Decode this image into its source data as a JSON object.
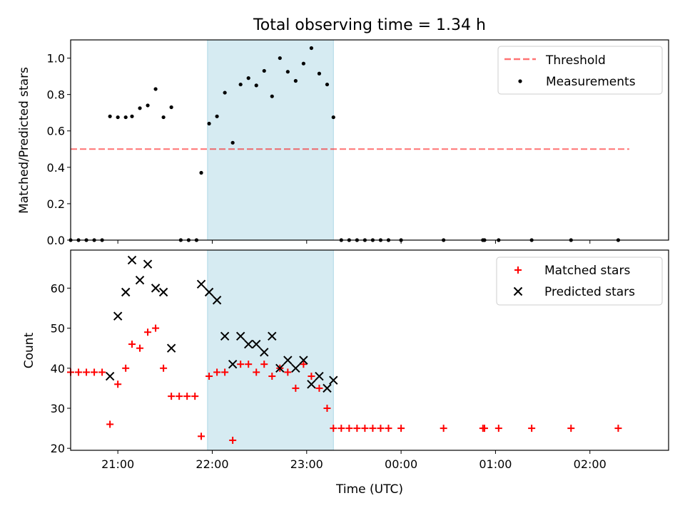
{
  "colors": {
    "shade": "#add8e6",
    "threshold": "#ff0000",
    "measurements": "#000000",
    "matched": "#ff0000",
    "predicted": "#000000"
  },
  "chart_data": [
    {
      "type": "scatter",
      "title": "Total observing time = 1.34 h",
      "ylabel": "Matched/Predicted stars",
      "xlabel": "",
      "ylim": [
        0,
        1.1
      ],
      "xlim": [
        "20:30",
        "02:50"
      ],
      "yticks": [
        0.0,
        0.2,
        0.4,
        0.6,
        0.8,
        1.0
      ],
      "ytick_labels": [
        "0.0",
        "0.2",
        "0.4",
        "0.6",
        "0.8",
        "1.0"
      ],
      "shaded_interval": [
        "21:57",
        "23:17"
      ],
      "legend": {
        "placement": "top-right",
        "entries": [
          "Threshold",
          "Measurements"
        ]
      },
      "threshold": {
        "name": "Threshold",
        "value": 0.5,
        "x_range": [
          "20:30",
          "02:25"
        ],
        "style": "dashed"
      },
      "series": [
        {
          "name": "Measurements",
          "points": [
            [
              "20:30",
              0.0
            ],
            [
              "20:35",
              0.0
            ],
            [
              "20:40",
              0.0
            ],
            [
              "20:45",
              0.0
            ],
            [
              "20:50",
              0.0
            ],
            [
              "20:55",
              0.68
            ],
            [
              "21:00",
              0.675
            ],
            [
              "21:05",
              0.675
            ],
            [
              "21:09",
              0.68
            ],
            [
              "21:14",
              0.725
            ],
            [
              "21:19",
              0.74
            ],
            [
              "21:24",
              0.83
            ],
            [
              "21:29",
              0.675
            ],
            [
              "21:34",
              0.73
            ],
            [
              "21:40",
              0.0
            ],
            [
              "21:45",
              0.0
            ],
            [
              "21:50",
              0.0
            ],
            [
              "21:53",
              0.37
            ],
            [
              "21:58",
              0.64
            ],
            [
              "22:03",
              0.68
            ],
            [
              "22:08",
              0.81
            ],
            [
              "22:13",
              0.535
            ],
            [
              "22:18",
              0.855
            ],
            [
              "22:23",
              0.89
            ],
            [
              "22:28",
              0.85
            ],
            [
              "22:33",
              0.93
            ],
            [
              "22:38",
              0.79
            ],
            [
              "22:43",
              1.0
            ],
            [
              "22:48",
              0.925
            ],
            [
              "22:53",
              0.875
            ],
            [
              "22:58",
              0.97
            ],
            [
              "23:03",
              1.055
            ],
            [
              "23:08",
              0.915
            ],
            [
              "23:13",
              0.855
            ],
            [
              "23:17",
              0.675
            ],
            [
              "23:22",
              0.0
            ],
            [
              "23:27",
              0.0
            ],
            [
              "23:32",
              0.0
            ],
            [
              "23:37",
              0.0
            ],
            [
              "23:42",
              0.0
            ],
            [
              "23:47",
              0.0
            ],
            [
              "23:52",
              0.0
            ],
            [
              "00:00",
              0.0
            ],
            [
              "00:27",
              0.0
            ],
            [
              "00:52",
              0.0
            ],
            [
              "00:53",
              0.0
            ],
            [
              "01:02",
              0.0
            ],
            [
              "01:23",
              0.0
            ],
            [
              "01:48",
              0.0
            ],
            [
              "02:18",
              0.0
            ]
          ]
        }
      ]
    },
    {
      "type": "scatter",
      "title": "",
      "xlabel": "Time (UTC)",
      "ylabel": "Count",
      "ylim": [
        19.5,
        69.5
      ],
      "xlim": [
        "20:30",
        "02:50"
      ],
      "yticks": [
        20,
        30,
        40,
        50,
        60
      ],
      "ytick_labels": [
        "20",
        "30",
        "40",
        "50",
        "60"
      ],
      "xticks": [
        "21:00",
        "22:00",
        "23:00",
        "00:00",
        "01:00",
        "02:00"
      ],
      "xtick_labels": [
        "21:00",
        "22:00",
        "23:00",
        "00:00",
        "01:00",
        "02:00"
      ],
      "shaded_interval": [
        "21:57",
        "23:17"
      ],
      "legend": {
        "placement": "top-right",
        "entries": [
          "Matched stars",
          "Predicted stars"
        ]
      },
      "series": [
        {
          "name": "Matched stars",
          "marker": "+",
          "points": [
            [
              "20:30",
              39
            ],
            [
              "20:35",
              39
            ],
            [
              "20:40",
              39
            ],
            [
              "20:45",
              39
            ],
            [
              "20:50",
              39
            ],
            [
              "20:55",
              26
            ],
            [
              "21:00",
              36
            ],
            [
              "21:05",
              40
            ],
            [
              "21:09",
              46
            ],
            [
              "21:14",
              45
            ],
            [
              "21:19",
              49
            ],
            [
              "21:24",
              50
            ],
            [
              "21:29",
              40
            ],
            [
              "21:34",
              33
            ],
            [
              "21:39",
              33
            ],
            [
              "21:44",
              33
            ],
            [
              "21:49",
              33
            ],
            [
              "21:53",
              23
            ],
            [
              "21:58",
              38
            ],
            [
              "22:03",
              39
            ],
            [
              "22:08",
              39
            ],
            [
              "22:13",
              22
            ],
            [
              "22:18",
              41
            ],
            [
              "22:23",
              41
            ],
            [
              "22:28",
              39
            ],
            [
              "22:33",
              41
            ],
            [
              "22:38",
              38
            ],
            [
              "22:43",
              40
            ],
            [
              "22:48",
              39
            ],
            [
              "22:53",
              35
            ],
            [
              "22:58",
              41
            ],
            [
              "23:03",
              38
            ],
            [
              "23:08",
              35
            ],
            [
              "23:13",
              30
            ],
            [
              "23:17",
              25
            ],
            [
              "23:22",
              25
            ],
            [
              "23:27",
              25
            ],
            [
              "23:32",
              25
            ],
            [
              "23:37",
              25
            ],
            [
              "23:42",
              25
            ],
            [
              "23:47",
              25
            ],
            [
              "23:52",
              25
            ],
            [
              "00:00",
              25
            ],
            [
              "00:27",
              25
            ],
            [
              "00:52",
              25
            ],
            [
              "00:53",
              25
            ],
            [
              "01:02",
              25
            ],
            [
              "01:23",
              25
            ],
            [
              "01:48",
              25
            ],
            [
              "02:18",
              25
            ]
          ]
        },
        {
          "name": "Predicted stars",
          "marker": "x",
          "points": [
            [
              "20:55",
              38
            ],
            [
              "21:00",
              53
            ],
            [
              "21:05",
              59
            ],
            [
              "21:09",
              67
            ],
            [
              "21:14",
              62
            ],
            [
              "21:19",
              66
            ],
            [
              "21:24",
              60
            ],
            [
              "21:29",
              59
            ],
            [
              "21:34",
              45
            ],
            [
              "21:53",
              61
            ],
            [
              "21:58",
              59
            ],
            [
              "22:03",
              57
            ],
            [
              "22:08",
              48
            ],
            [
              "22:13",
              41
            ],
            [
              "22:18",
              48
            ],
            [
              "22:23",
              46
            ],
            [
              "22:28",
              46
            ],
            [
              "22:33",
              44
            ],
            [
              "22:38",
              48
            ],
            [
              "22:43",
              40
            ],
            [
              "22:48",
              42
            ],
            [
              "22:53",
              40
            ],
            [
              "22:58",
              42
            ],
            [
              "23:03",
              36
            ],
            [
              "23:08",
              38
            ],
            [
              "23:13",
              35
            ],
            [
              "23:17",
              37
            ]
          ]
        }
      ]
    }
  ]
}
